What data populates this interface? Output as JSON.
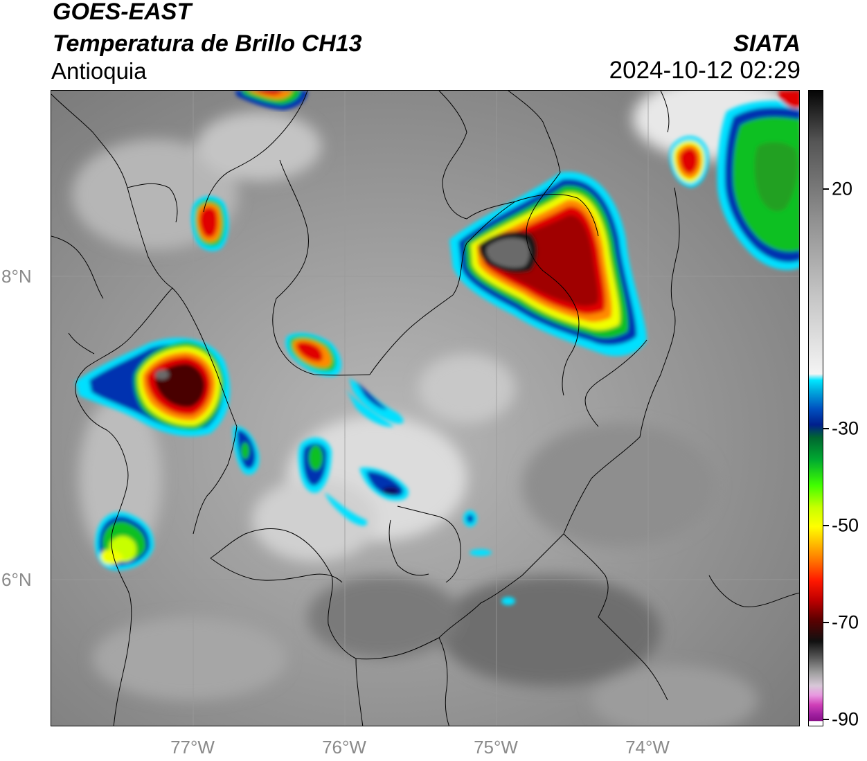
{
  "header": {
    "title_line1": "GOES-EAST",
    "title_line2": "Temperatura de Brillo CH13",
    "region": "Antioquia",
    "agency": "SIATA",
    "datetime": "2024-10-12 02:29"
  },
  "map": {
    "lat_labels": [
      "8°N",
      "6°N"
    ],
    "lon_labels": [
      "77°W",
      "76°W",
      "75°W",
      "74°W"
    ],
    "gridline_color": "#9a9a9a",
    "background_tone": "#8a8a8a"
  },
  "colorbar": {
    "tick_labels": [
      "20",
      "-30",
      "-50",
      "-70",
      "-90"
    ],
    "stops_top_to_bottom": [
      "#050505",
      "#555555",
      "#9a9a9a",
      "#e8e8e8",
      "#ffffff",
      "#00e6ff",
      "#00b0e0",
      "#0050c0",
      "#001f8c",
      "#006630",
      "#00aa30",
      "#40ff00",
      "#c8ff00",
      "#ffff00",
      "#ffc000",
      "#ff7000",
      "#ff1800",
      "#c00000",
      "#600000",
      "#101010",
      "#404040",
      "#888888",
      "#c0c0c0",
      "#e8a0e0",
      "#e040c0",
      "#b020a0",
      "#8a1088",
      "#ffffff"
    ]
  },
  "storm_colors": {
    "cyan": "#00e0ff",
    "blue": "#0030b0",
    "green": "#10c020",
    "yellow": "#f0ff00",
    "orange": "#ff8a00",
    "red": "#e00000",
    "darkred": "#700000",
    "black": "#141414",
    "gray": "#6a6a6a"
  }
}
